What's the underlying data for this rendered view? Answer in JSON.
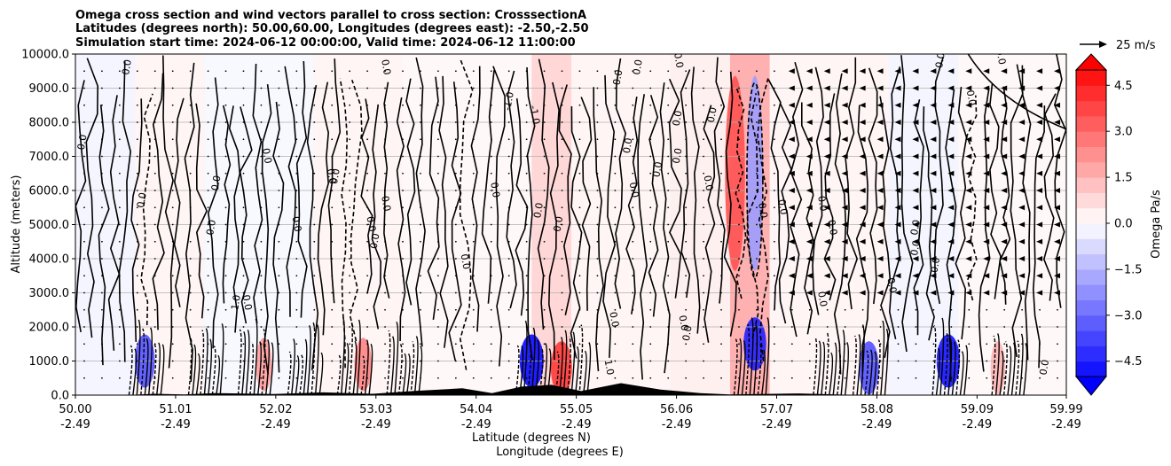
{
  "chart_data": {
    "type": "contour-cross-section",
    "title_lines": [
      "Omega cross section and wind vectors parallel to cross section: CrosssectionA",
      "Latitudes (degrees north): 50.00,60.00, Longitudes (degrees east): -2.50,-2.50",
      "Simulation start time: 2024-06-12 00:00:00, Valid time: 2024-06-12 11:00:00"
    ],
    "ylabel": "Altitude (meters)",
    "xlabel_lat": "Latitude (degrees N)",
    "xlabel_lon": "Longitude (degrees E)",
    "ylim": [
      0,
      10000
    ],
    "xlim": [
      50.0,
      59.99
    ],
    "y_ticks": [
      {
        "value": 0,
        "label": "0.0"
      },
      {
        "value": 1000,
        "label": "1000.0"
      },
      {
        "value": 2000,
        "label": "2000.0"
      },
      {
        "value": 3000,
        "label": "3000.0"
      },
      {
        "value": 4000,
        "label": "4000.0"
      },
      {
        "value": 5000,
        "label": "5000.0"
      },
      {
        "value": 6000,
        "label": "6000.0"
      },
      {
        "value": 7000,
        "label": "7000.0"
      },
      {
        "value": 8000,
        "label": "8000.0"
      },
      {
        "value": 9000,
        "label": "9000.0"
      },
      {
        "value": 10000,
        "label": "10000.0"
      }
    ],
    "x_ticks": [
      {
        "value": 50.0,
        "lat": "50.00",
        "lon": "-2.49"
      },
      {
        "value": 51.01,
        "lat": "51.01",
        "lon": "-2.49"
      },
      {
        "value": 52.02,
        "lat": "52.02",
        "lon": "-2.49"
      },
      {
        "value": 53.03,
        "lat": "53.03",
        "lon": "-2.49"
      },
      {
        "value": 54.04,
        "lat": "54.04",
        "lon": "-2.49"
      },
      {
        "value": 55.05,
        "lat": "55.05",
        "lon": "-2.49"
      },
      {
        "value": 56.06,
        "lat": "56.06",
        "lon": "-2.49"
      },
      {
        "value": 57.07,
        "lat": "57.07",
        "lon": "-2.49"
      },
      {
        "value": 58.08,
        "lat": "58.08",
        "lon": "-2.49"
      },
      {
        "value": 59.09,
        "lat": "59.09",
        "lon": "-2.49"
      },
      {
        "value": 59.99,
        "lat": "59.99",
        "lon": "-2.49"
      }
    ],
    "colorbar": {
      "label": "Omega Pa/s",
      "range": [
        -5,
        5
      ],
      "ticks": [
        {
          "value": 4.5,
          "label": "4.5"
        },
        {
          "value": 3.0,
          "label": "3.0"
        },
        {
          "value": 1.5,
          "label": "1.5"
        },
        {
          "value": 0.0,
          "label": "0.0"
        },
        {
          "value": -1.5,
          "label": "−1.5"
        },
        {
          "value": -3.0,
          "label": "−3.0"
        },
        {
          "value": -4.5,
          "label": "−4.5"
        }
      ],
      "extend": "both"
    },
    "quiver_key": {
      "label": "25 m/s",
      "speed": 25
    },
    "omega_bands": [
      {
        "x0": 50.0,
        "x1": 50.6,
        "value": -0.2
      },
      {
        "x0": 50.6,
        "x1": 51.3,
        "value": 0.2
      },
      {
        "x0": 51.3,
        "x1": 52.4,
        "value": -0.15
      },
      {
        "x0": 52.4,
        "x1": 53.3,
        "value": 0.2
      },
      {
        "x0": 53.3,
        "x1": 54.6,
        "value": 0.15
      },
      {
        "x0": 54.6,
        "x1": 55.0,
        "value": 0.8
      },
      {
        "x0": 55.0,
        "x1": 56.0,
        "value": 0.2
      },
      {
        "x0": 56.0,
        "x1": 56.6,
        "value": 0.3
      },
      {
        "x0": 56.6,
        "x1": 57.0,
        "value": 1.6
      },
      {
        "x0": 57.0,
        "x1": 58.2,
        "value": 0.2
      },
      {
        "x0": 58.2,
        "x1": 58.9,
        "value": -0.2
      },
      {
        "x0": 58.9,
        "x1": 59.99,
        "value": 0.15
      }
    ],
    "omega_cells": [
      {
        "x": 50.7,
        "alt": 1000,
        "value": -3.5
      },
      {
        "x": 51.9,
        "alt": 900,
        "value": 2.0
      },
      {
        "x": 52.9,
        "alt": 900,
        "value": 2.5
      },
      {
        "x": 54.6,
        "alt": 1000,
        "value": -5.0
      },
      {
        "x": 54.9,
        "alt": 800,
        "value": 4.0
      },
      {
        "x": 56.65,
        "alt": 6500,
        "value": 3.5
      },
      {
        "x": 56.85,
        "alt": 6500,
        "value": -2.0
      },
      {
        "x": 56.85,
        "alt": 1500,
        "value": -4.5
      },
      {
        "x": 58.0,
        "alt": 800,
        "value": -3.5
      },
      {
        "x": 58.8,
        "alt": 1000,
        "value": -4.8
      },
      {
        "x": 59.3,
        "alt": 800,
        "value": 1.5
      }
    ],
    "contour_labels": [
      {
        "x": 50.1,
        "alt": 7400,
        "text": "0.0"
      },
      {
        "x": 50.55,
        "alt": 9600,
        "text": "0.0"
      },
      {
        "x": 50.7,
        "alt": 5700,
        "text": "0.0"
      },
      {
        "x": 51.4,
        "alt": 4900,
        "text": "0.0"
      },
      {
        "x": 51.45,
        "alt": 6200,
        "text": "0.0"
      },
      {
        "x": 51.7,
        "alt": 2700,
        "text": "0.0"
      },
      {
        "x": 51.65,
        "alt": 2700,
        "text": "1.0"
      },
      {
        "x": 51.9,
        "alt": 7000,
        "text": "0.0"
      },
      {
        "x": 52.2,
        "alt": 5000,
        "text": "0.0"
      },
      {
        "x": 52.55,
        "alt": 6400,
        "text": "0.0"
      },
      {
        "x": 52.65,
        "alt": 6400,
        "text": "0.0"
      },
      {
        "x": 52.95,
        "alt": 5000,
        "text": "0.0"
      },
      {
        "x": 53.05,
        "alt": 4500,
        "text": "0.0"
      },
      {
        "x": 53.1,
        "alt": 5600,
        "text": "0.0"
      },
      {
        "x": 53.1,
        "alt": 9600,
        "text": "0.0"
      },
      {
        "x": 53.9,
        "alt": 3900,
        "text": "0.0"
      },
      {
        "x": 54.2,
        "alt": 6000,
        "text": "0.0"
      },
      {
        "x": 54.4,
        "alt": 8600,
        "text": "-1.0"
      },
      {
        "x": 54.6,
        "alt": 8200,
        "text": "-1.0"
      },
      {
        "x": 54.7,
        "alt": 5400,
        "text": "0.0"
      },
      {
        "x": 54.9,
        "alt": 5000,
        "text": "0.0"
      },
      {
        "x": 55.4,
        "alt": 2200,
        "text": "0.0"
      },
      {
        "x": 55.6,
        "alt": 7300,
        "text": "0.0"
      },
      {
        "x": 55.6,
        "alt": 6000,
        "text": "0.0"
      },
      {
        "x": 55.5,
        "alt": 9300,
        "text": "0.0"
      },
      {
        "x": 55.7,
        "alt": 9600,
        "text": "0.0"
      },
      {
        "x": 55.9,
        "alt": 6600,
        "text": "0.0"
      },
      {
        "x": 55.35,
        "alt": 800,
        "text": "1.0"
      },
      {
        "x": 56.05,
        "alt": 9800,
        "text": "0.0"
      },
      {
        "x": 56.1,
        "alt": 8100,
        "text": "0.0"
      },
      {
        "x": 56.1,
        "alt": 7000,
        "text": "0.0"
      },
      {
        "x": 56.1,
        "alt": 2100,
        "text": "0.0"
      },
      {
        "x": 56.2,
        "alt": 1800,
        "text": "0.0"
      },
      {
        "x": 56.35,
        "alt": 6200,
        "text": "0.0"
      },
      {
        "x": 56.45,
        "alt": 8200,
        "text": "0.0"
      },
      {
        "x": 56.9,
        "alt": 5400,
        "text": "0.0"
      },
      {
        "x": 57.1,
        "alt": 5500,
        "text": "0.0"
      },
      {
        "x": 57.5,
        "alt": 5600,
        "text": "0.0"
      },
      {
        "x": 57.6,
        "alt": 4900,
        "text": "0.0"
      },
      {
        "x": 57.5,
        "alt": 2800,
        "text": "0.0"
      },
      {
        "x": 58.2,
        "alt": 3200,
        "text": "0.0"
      },
      {
        "x": 58.5,
        "alt": 4900,
        "text": "0.0"
      },
      {
        "x": 58.5,
        "alt": 4300,
        "text": "0.0"
      },
      {
        "x": 58.7,
        "alt": 3800,
        "text": "0.0"
      },
      {
        "x": 58.75,
        "alt": 9800,
        "text": "0.0"
      },
      {
        "x": 59.0,
        "alt": 8700,
        "text": "0.0"
      },
      {
        "x": 59.3,
        "alt": 9900,
        "text": "0.0"
      },
      {
        "x": 59.8,
        "alt": 800,
        "text": "0.0"
      }
    ]
  }
}
